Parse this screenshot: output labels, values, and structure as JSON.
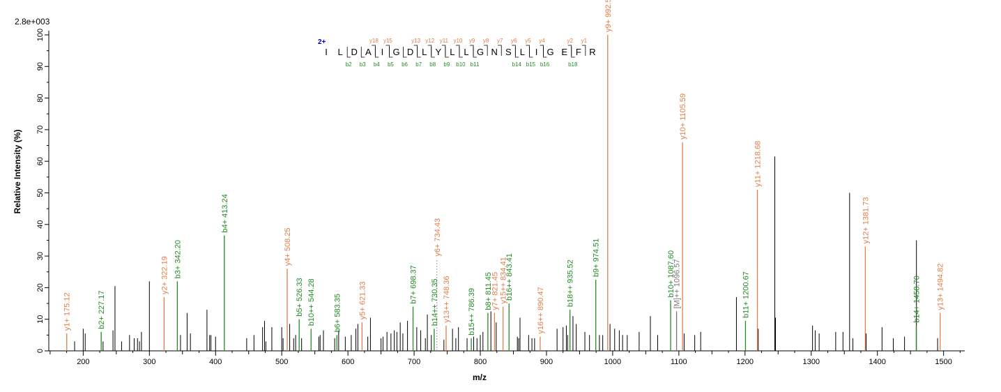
{
  "chart_data": {
    "type": "bar",
    "scale_label": "2.8e+003",
    "xlabel": "m/z",
    "ylabel": "Relative   Intensity (%)",
    "xlim": [
      148,
      1532
    ],
    "ylim": [
      0,
      102
    ],
    "x_ticks": [
      200,
      300,
      400,
      500,
      600,
      700,
      800,
      900,
      1000,
      1100,
      1200,
      1300,
      1400,
      1500
    ],
    "y_ticks": [
      0,
      10,
      20,
      30,
      40,
      50,
      60,
      70,
      80,
      90,
      100
    ],
    "colors": {
      "y_ion": "#e07e4a",
      "b_ion": "#228b22",
      "unassigned": "#000000",
      "other_ion": "#777777",
      "charge": "#0000cc"
    },
    "peaks_y": [
      {
        "x": 175.12,
        "y": 5.5,
        "label": "y1+ 175.12"
      },
      {
        "x": 322.19,
        "y": 17,
        "label": "y2+ 322.19"
      },
      {
        "x": 508.25,
        "y": 26,
        "label": "y4+ 508.25"
      },
      {
        "x": 621.33,
        "y": 9,
        "label": "y5+ 621.33"
      },
      {
        "x": 734.43,
        "y": 29,
        "label": "y6+ 734.43",
        "dashed": true
      },
      {
        "x": 748.36,
        "y": 8,
        "label": "y13++ 748.36"
      },
      {
        "x": 821.45,
        "y": 12,
        "label": "y7+ 821.45"
      },
      {
        "x": 834.41,
        "y": 14,
        "label": "y15++ 834.41"
      },
      {
        "x": 890.47,
        "y": 4.5,
        "label": "y16++ 890.47"
      },
      {
        "x": 992.51,
        "y": 100,
        "label": "y9+ 992.51"
      },
      {
        "x": 1105.59,
        "y": 66,
        "label": "y10+ 1105.59"
      },
      {
        "x": 1218.68,
        "y": 51,
        "label": "y11+ 1218.68"
      },
      {
        "x": 1381.73,
        "y": 33,
        "label": "y12+ 1381.73"
      },
      {
        "x": 1494.82,
        "y": 12,
        "label": "y13+ 1494.82"
      }
    ],
    "peaks_b": [
      {
        "x": 227.17,
        "y": 6,
        "label": "b2+ 227.17"
      },
      {
        "x": 342.2,
        "y": 22,
        "label": "b3+ 342.20"
      },
      {
        "x": 413.24,
        "y": 36.5,
        "label": "b4+ 413.24"
      },
      {
        "x": 526.33,
        "y": 10,
        "label": "b5+ 526.33"
      },
      {
        "x": 544.28,
        "y": 7,
        "label": "b10++ 544.28"
      },
      {
        "x": 583.35,
        "y": 5,
        "label": "b6+ 583.35"
      },
      {
        "x": 698.37,
        "y": 14,
        "label": "b7+ 698.37"
      },
      {
        "x": 730.35,
        "y": 7,
        "label": "b14++ 730.35"
      },
      {
        "x": 786.39,
        "y": 4,
        "label": "b15++ 786.39"
      },
      {
        "x": 811.45,
        "y": 12,
        "label": "b8+ 811.45"
      },
      {
        "x": 843.41,
        "y": 15,
        "label": "b16++ 843.41"
      },
      {
        "x": 935.52,
        "y": 13,
        "label": "b18++ 935.52"
      },
      {
        "x": 974.51,
        "y": 22.5,
        "label": "b9+ 974.51"
      },
      {
        "x": 1087.6,
        "y": 16,
        "label": "b10+ 1087.60"
      },
      {
        "x": 1200.67,
        "y": 9.5,
        "label": "b11+ 1200.67"
      },
      {
        "x": 1458.7,
        "y": 8,
        "label": "b14+ 1458.70"
      }
    ],
    "peaks_other": [
      {
        "x": 1096.57,
        "y": 12.5,
        "label": "[M]++ 1096.57"
      }
    ],
    "peaks_unassigned": [
      {
        "x": 187,
        "y": 3
      },
      {
        "x": 200,
        "y": 7
      },
      {
        "x": 203,
        "y": 5.5
      },
      {
        "x": 230,
        "y": 3
      },
      {
        "x": 245,
        "y": 6.5
      },
      {
        "x": 248,
        "y": 20.5
      },
      {
        "x": 258,
        "y": 3
      },
      {
        "x": 270,
        "y": 5
      },
      {
        "x": 277,
        "y": 4
      },
      {
        "x": 282,
        "y": 4
      },
      {
        "x": 285,
        "y": 3
      },
      {
        "x": 288,
        "y": 6
      },
      {
        "x": 300,
        "y": 22
      },
      {
        "x": 347,
        "y": 5
      },
      {
        "x": 357,
        "y": 12
      },
      {
        "x": 362,
        "y": 5.5
      },
      {
        "x": 387,
        "y": 13
      },
      {
        "x": 391,
        "y": 5
      },
      {
        "x": 393,
        "y": 5
      },
      {
        "x": 400,
        "y": 4.5
      },
      {
        "x": 447,
        "y": 4
      },
      {
        "x": 458,
        "y": 5
      },
      {
        "x": 471,
        "y": 7.5
      },
      {
        "x": 474,
        "y": 9.5
      },
      {
        "x": 476,
        "y": 3
      },
      {
        "x": 485,
        "y": 7.5
      },
      {
        "x": 500,
        "y": 7.5
      },
      {
        "x": 502,
        "y": 4
      },
      {
        "x": 512,
        "y": 8.5
      },
      {
        "x": 518,
        "y": 4
      },
      {
        "x": 521,
        "y": 5
      },
      {
        "x": 530,
        "y": 4
      },
      {
        "x": 556,
        "y": 4.5
      },
      {
        "x": 558,
        "y": 5
      },
      {
        "x": 563,
        "y": 6.5
      },
      {
        "x": 580,
        "y": 4
      },
      {
        "x": 586,
        "y": 6.5
      },
      {
        "x": 596,
        "y": 4.5
      },
      {
        "x": 605,
        "y": 5
      },
      {
        "x": 612,
        "y": 7
      },
      {
        "x": 615,
        "y": 8.5
      },
      {
        "x": 630,
        "y": 4.5
      },
      {
        "x": 634,
        "y": 10.5
      },
      {
        "x": 650,
        "y": 4
      },
      {
        "x": 653,
        "y": 4.5
      },
      {
        "x": 659,
        "y": 6
      },
      {
        "x": 665,
        "y": 5.5
      },
      {
        "x": 670,
        "y": 6.5
      },
      {
        "x": 674,
        "y": 6
      },
      {
        "x": 679,
        "y": 9
      },
      {
        "x": 683,
        "y": 5.5
      },
      {
        "x": 690,
        "y": 9.5
      },
      {
        "x": 704,
        "y": 7.5
      },
      {
        "x": 710,
        "y": 6.5
      },
      {
        "x": 717,
        "y": 4
      },
      {
        "x": 720,
        "y": 11.5
      },
      {
        "x": 726,
        "y": 5
      },
      {
        "x": 745,
        "y": 3.5
      },
      {
        "x": 758,
        "y": 7
      },
      {
        "x": 763,
        "y": 4
      },
      {
        "x": 767,
        "y": 7.5
      },
      {
        "x": 780,
        "y": 4
      },
      {
        "x": 790,
        "y": 4.5
      },
      {
        "x": 795,
        "y": 4
      },
      {
        "x": 800,
        "y": 5
      },
      {
        "x": 804,
        "y": 6
      },
      {
        "x": 816,
        "y": 12.5
      },
      {
        "x": 824,
        "y": 9
      },
      {
        "x": 856,
        "y": 4.5
      },
      {
        "x": 858,
        "y": 4
      },
      {
        "x": 860,
        "y": 10.5
      },
      {
        "x": 873,
        "y": 5
      },
      {
        "x": 878,
        "y": 4
      },
      {
        "x": 882,
        "y": 4
      },
      {
        "x": 916,
        "y": 7
      },
      {
        "x": 925,
        "y": 7.5
      },
      {
        "x": 930,
        "y": 8
      },
      {
        "x": 932,
        "y": 5
      },
      {
        "x": 940,
        "y": 11
      },
      {
        "x": 945,
        "y": 8.5
      },
      {
        "x": 958,
        "y": 6
      },
      {
        "x": 965,
        "y": 5
      },
      {
        "x": 980,
        "y": 5
      },
      {
        "x": 985,
        "y": 5
      },
      {
        "x": 996,
        "y": 8.5
      },
      {
        "x": 1003,
        "y": 7
      },
      {
        "x": 1010,
        "y": 6.5
      },
      {
        "x": 1015,
        "y": 5
      },
      {
        "x": 1022,
        "y": 5
      },
      {
        "x": 1040,
        "y": 6
      },
      {
        "x": 1057,
        "y": 11
      },
      {
        "x": 1068,
        "y": 5
      },
      {
        "x": 1108,
        "y": 5.5
      },
      {
        "x": 1124,
        "y": 5
      },
      {
        "x": 1133,
        "y": 6
      },
      {
        "x": 1187,
        "y": 17
      },
      {
        "x": 1220,
        "y": 7
      },
      {
        "x": 1245,
        "y": 61.5
      },
      {
        "x": 1246,
        "y": 10.5
      },
      {
        "x": 1302,
        "y": 8
      },
      {
        "x": 1306,
        "y": 6.5
      },
      {
        "x": 1312,
        "y": 5.5
      },
      {
        "x": 1337,
        "y": 6
      },
      {
        "x": 1348,
        "y": 6
      },
      {
        "x": 1358,
        "y": 50
      },
      {
        "x": 1363,
        "y": 4
      },
      {
        "x": 1383,
        "y": 5.5
      },
      {
        "x": 1407,
        "y": 7.5
      },
      {
        "x": 1424,
        "y": 4
      },
      {
        "x": 1441,
        "y": 4.5
      },
      {
        "x": 1459,
        "y": 35
      },
      {
        "x": 1491,
        "y": 4
      }
    ]
  },
  "sequence": {
    "charge": "2+",
    "residues": [
      "I",
      "L",
      "D",
      "A",
      "I",
      "G",
      "D",
      "L",
      "Y",
      "L",
      "L",
      "G",
      "N",
      "S",
      "L",
      "I",
      "G",
      "E",
      "F",
      "R"
    ],
    "y_ions": [
      {
        "label": "y",
        "sub": "18",
        "after": 3
      },
      {
        "label": "y",
        "sub": "15",
        "after": 4
      },
      {
        "label": "y",
        "sub": "13",
        "after": 6
      },
      {
        "label": "y",
        "sub": "12",
        "after": 7
      },
      {
        "label": "y",
        "sub": "11",
        "after": 8
      },
      {
        "label": "y",
        "sub": "10",
        "after": 9
      },
      {
        "label": "y",
        "sub": "9",
        "after": 10
      },
      {
        "label": "y",
        "sub": "8",
        "after": 11
      },
      {
        "label": "y",
        "sub": "7",
        "after": 12
      },
      {
        "label": "y",
        "sub": "6",
        "after": 13
      },
      {
        "label": "y",
        "sub": "5",
        "after": 14
      },
      {
        "label": "y",
        "sub": "4",
        "after": 15
      },
      {
        "label": "y",
        "sub": "2",
        "after": 17
      },
      {
        "label": "y",
        "sub": "1",
        "after": 18
      }
    ],
    "b_ions": [
      {
        "label": "b",
        "sub": "2",
        "after": 1
      },
      {
        "label": "b",
        "sub": "3",
        "after": 2
      },
      {
        "label": "b",
        "sub": "4",
        "after": 3
      },
      {
        "label": "b",
        "sub": "5",
        "after": 4
      },
      {
        "label": "b",
        "sub": "6",
        "after": 5
      },
      {
        "label": "b",
        "sub": "7",
        "after": 6
      },
      {
        "label": "b",
        "sub": "8",
        "after": 7
      },
      {
        "label": "b",
        "sub": "9",
        "after": 8
      },
      {
        "label": "b",
        "sub": "10",
        "after": 9
      },
      {
        "label": "b",
        "sub": "11",
        "after": 10
      },
      {
        "label": "b",
        "sub": "14",
        "after": 13
      },
      {
        "label": "b",
        "sub": "15",
        "after": 14
      },
      {
        "label": "b",
        "sub": "16",
        "after": 15
      },
      {
        "label": "b",
        "sub": "18",
        "after": 17
      }
    ]
  }
}
